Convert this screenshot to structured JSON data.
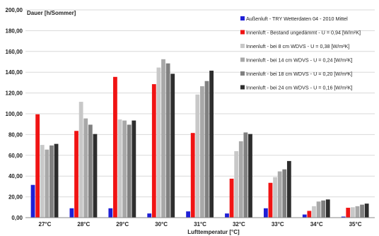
{
  "chart_data": {
    "type": "bar",
    "title": "",
    "ylabel": "Dauer [h/Sommer]",
    "xlabel": "Lufttemperatur [°C]",
    "ylim": [
      0,
      200
    ],
    "yticks": [
      "0,00",
      "20,00",
      "40,00",
      "60,00",
      "80,00",
      "100,00",
      "120,00",
      "140,00",
      "160,00",
      "180,00",
      "200,00"
    ],
    "categories": [
      "27°C",
      "28°C",
      "29°C",
      "30°C",
      "31°C",
      "32°C",
      "33°C",
      "34°C",
      "35°C"
    ],
    "grid": true,
    "legend_position": "top-right",
    "series": [
      {
        "name": "Außenluft - TRY Wetterdaten 04 - 2010 Mittel",
        "color": "#1f1fd6",
        "values": [
          31.5,
          9,
          9,
          4,
          6,
          4,
          9,
          3,
          1
        ]
      },
      {
        "name": "Innenluft - Bestand ungedämmt - U = 0,94 [W/m²K]",
        "color": "#f01414",
        "values": [
          99.5,
          83.5,
          135.5,
          128.5,
          81.5,
          37.5,
          33.5,
          6.5,
          9.5
        ]
      },
      {
        "name": "Innenluft - bei 8 cm WDVS - U = 0,38 [W/m²K]",
        "color": "#c8c8c8",
        "values": [
          70,
          111.5,
          94.5,
          144.5,
          118.5,
          64,
          39,
          11,
          10
        ]
      },
      {
        "name": "Innenluft - bei 14 cm WDVS - U = 0,24 [W/m²K]",
        "color": "#a8a8a8",
        "values": [
          65.5,
          95.5,
          93.5,
          152.5,
          126.5,
          73.5,
          44.5,
          15.5,
          11
        ]
      },
      {
        "name": "Innenluft - bei 18 cm WDVS - U = 0,20 [W/m²K]",
        "color": "#808080",
        "values": [
          69.5,
          89.5,
          89.5,
          148.5,
          131.5,
          82,
          46.5,
          16.5,
          12.5
        ]
      },
      {
        "name": "Innenluft - bei 24 cm WDVS - U = 0,16 [W/m²K]",
        "color": "#2e2e2e",
        "values": [
          71,
          80.5,
          93.5,
          138.5,
          141.5,
          80.5,
          54.5,
          17.5,
          13.5
        ]
      }
    ]
  }
}
